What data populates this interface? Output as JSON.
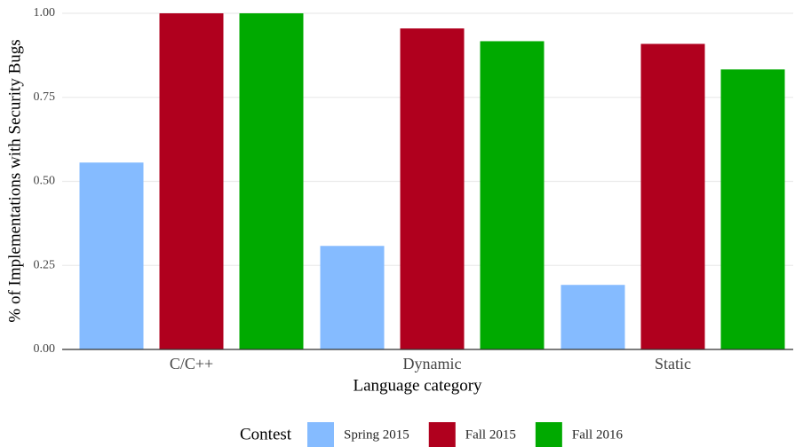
{
  "chart_data": {
    "type": "bar",
    "x_label": "Language category",
    "y_label": "% of Implementations with Security Bugs",
    "categories": [
      "C/C++",
      "Dynamic",
      "Static"
    ],
    "series": [
      {
        "name": "Spring 2015",
        "color": "#85bbff",
        "values": [
          0.556,
          0.308,
          0.192
        ]
      },
      {
        "name": "Fall 2015",
        "color": "#b0001e",
        "values": [
          1.0,
          0.955,
          0.909
        ]
      },
      {
        "name": "Fall 2016",
        "color": "#00aa00",
        "values": [
          1.0,
          0.917,
          0.833
        ]
      }
    ],
    "ylim": [
      0,
      1
    ],
    "yticks": [
      {
        "value": 0,
        "label": "0.00"
      },
      {
        "value": 0.25,
        "label": "0.25"
      },
      {
        "value": 0.5,
        "label": "0.50"
      },
      {
        "value": 0.75,
        "label": "0.75"
      },
      {
        "value": 1,
        "label": "1.00"
      }
    ],
    "grid": true,
    "legend": {
      "title": "Contest",
      "position": "bottom"
    }
  }
}
